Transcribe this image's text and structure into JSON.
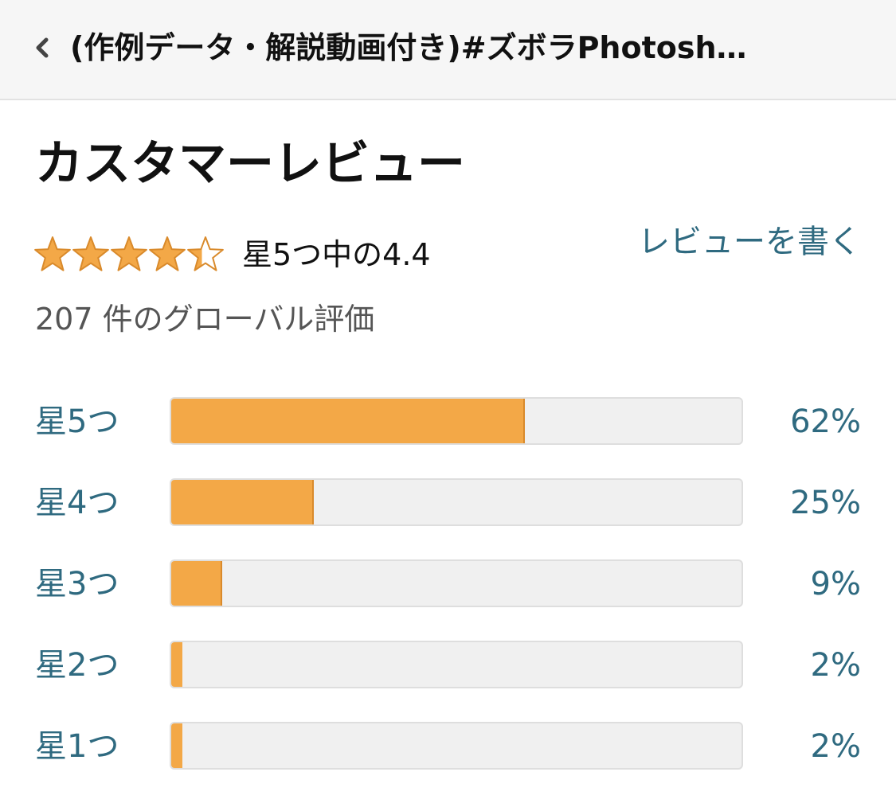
{
  "header": {
    "title": "(作例データ・解説動画付き)#ズボラPhotosh…",
    "back_icon": "chevron-left-icon"
  },
  "reviews": {
    "section_title": "カスタマーレビュー",
    "rating_value": 4.4,
    "rating_text": "星5つ中の4.4",
    "write_review_label": "レビューを書く",
    "total_ratings_text": "207 件のグローバル評価",
    "star_color": "#f3a847",
    "link_color": "#2f6a80"
  },
  "histogram": [
    {
      "label": "星5つ",
      "percent_label": "62%",
      "percent": 62
    },
    {
      "label": "星4つ",
      "percent_label": "25%",
      "percent": 25
    },
    {
      "label": "星3つ",
      "percent_label": "9%",
      "percent": 9
    },
    {
      "label": "星2つ",
      "percent_label": "2%",
      "percent": 2
    },
    {
      "label": "星1つ",
      "percent_label": "2%",
      "percent": 2
    }
  ]
}
